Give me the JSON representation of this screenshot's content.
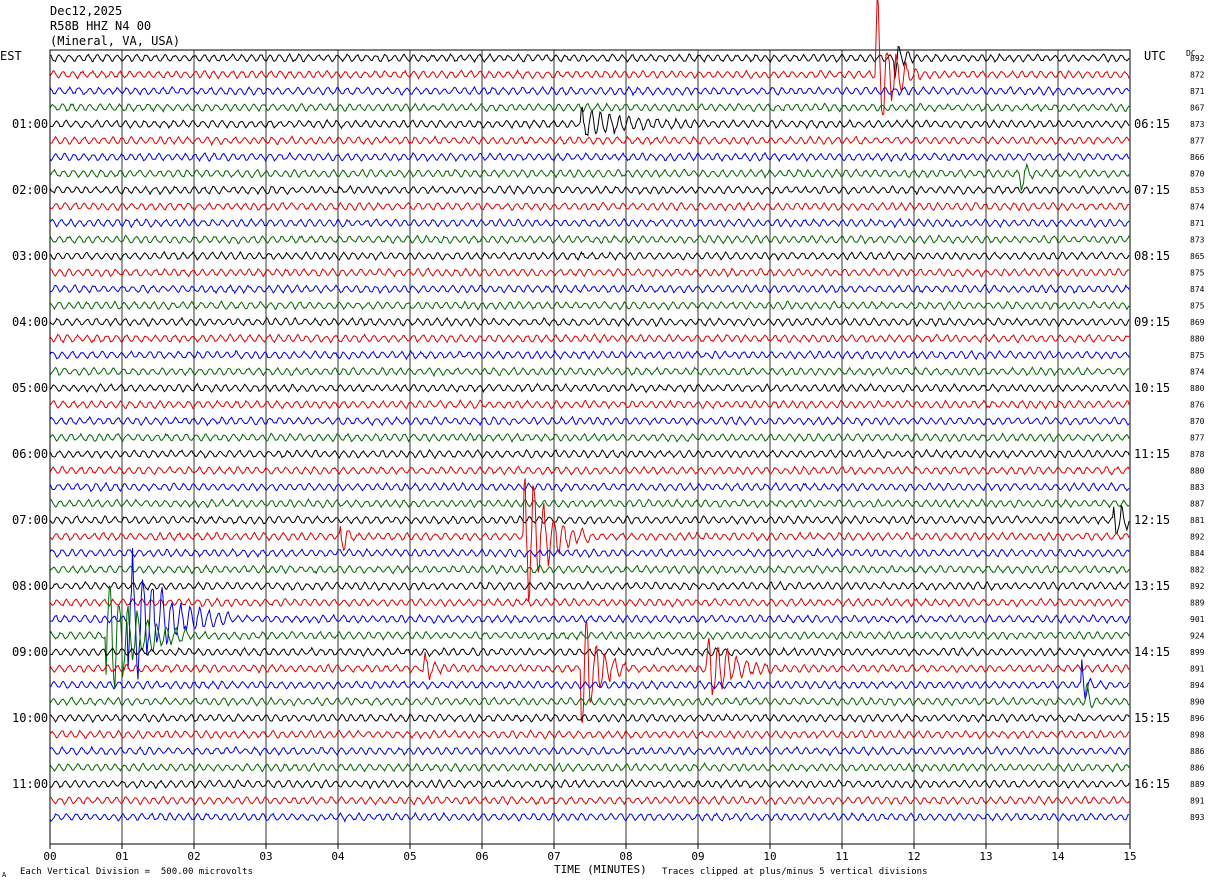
{
  "header": {
    "date": "Dec12,2025",
    "station": "R58B HHZ N4 00",
    "location": "(Mineral, VA, USA)"
  },
  "left_axis_label": "EST",
  "right_axis_label": "UTC",
  "dc_label": "DC",
  "footer": {
    "scale_note": "Each Vertical Division =  500.00 microvolts",
    "clip_note": "Traces clipped at plus/minus 5 vertical divisions",
    "corner_mark": "A"
  },
  "chart_data": {
    "type": "line",
    "title": "",
    "xlabel": "TIME (MINUTES)",
    "ylabel": "",
    "xlim": [
      0,
      15
    ],
    "x_ticks": [
      "00",
      "01",
      "02",
      "03",
      "04",
      "05",
      "06",
      "07",
      "08",
      "09",
      "10",
      "11",
      "12",
      "13",
      "14",
      "15"
    ],
    "trace_colors": [
      "#000000",
      "#dd0000",
      "#0000dd",
      "#006600"
    ],
    "est_hour_labels": [
      "01:00",
      "02:00",
      "03:00",
      "04:00",
      "05:00",
      "06:00",
      "07:00",
      "08:00",
      "09:00",
      "10:00",
      "11:00"
    ],
    "utc_hour_labels": [
      "06:15",
      "07:15",
      "08:15",
      "09:15",
      "10:15",
      "11:15",
      "12:15",
      "13:15",
      "14:15",
      "15:15",
      "16:15"
    ],
    "dc_offsets": [
      892,
      872,
      871,
      867,
      873,
      877,
      866,
      870,
      853,
      874,
      871,
      873,
      865,
      875,
      874,
      875,
      869,
      880,
      875,
      874,
      880,
      876,
      870,
      877,
      878,
      880,
      883,
      887,
      881,
      892,
      884,
      882,
      892,
      889,
      901,
      924,
      899,
      891,
      894,
      890,
      896,
      898,
      886,
      886,
      889,
      891,
      893
    ],
    "events": [
      {
        "trace": 0,
        "minute": 11.75,
        "amp": 1.5,
        "dur": 0.25
      },
      {
        "trace": 1,
        "minute": 11.5,
        "amp": 5.0,
        "dur": 0.6
      },
      {
        "trace": 4,
        "minute": 7.4,
        "amp": 1.0,
        "dur": 1.6
      },
      {
        "trace": 7,
        "minute": 13.5,
        "amp": 1.3,
        "dur": 0.2
      },
      {
        "trace": 28,
        "minute": 14.8,
        "amp": 1.3,
        "dur": 0.5
      },
      {
        "trace": 29,
        "minute": 6.6,
        "amp": 5.0,
        "dur": 0.9
      },
      {
        "trace": 29,
        "minute": 4.05,
        "amp": 1.5,
        "dur": 0.2
      },
      {
        "trace": 34,
        "minute": 1.1,
        "amp": 5.0,
        "dur": 1.4
      },
      {
        "trace": 35,
        "minute": 0.8,
        "amp": 5.0,
        "dur": 1.1
      },
      {
        "trace": 37,
        "minute": 7.4,
        "amp": 5.0,
        "dur": 0.6
      },
      {
        "trace": 37,
        "minute": 9.15,
        "amp": 2.5,
        "dur": 0.9
      },
      {
        "trace": 37,
        "minute": 5.2,
        "amp": 1.0,
        "dur": 0.3
      },
      {
        "trace": 38,
        "minute": 14.35,
        "amp": 1.5,
        "dur": 0.15
      },
      {
        "trace": 39,
        "minute": 14.4,
        "amp": 1.2,
        "dur": 0.15
      }
    ]
  }
}
